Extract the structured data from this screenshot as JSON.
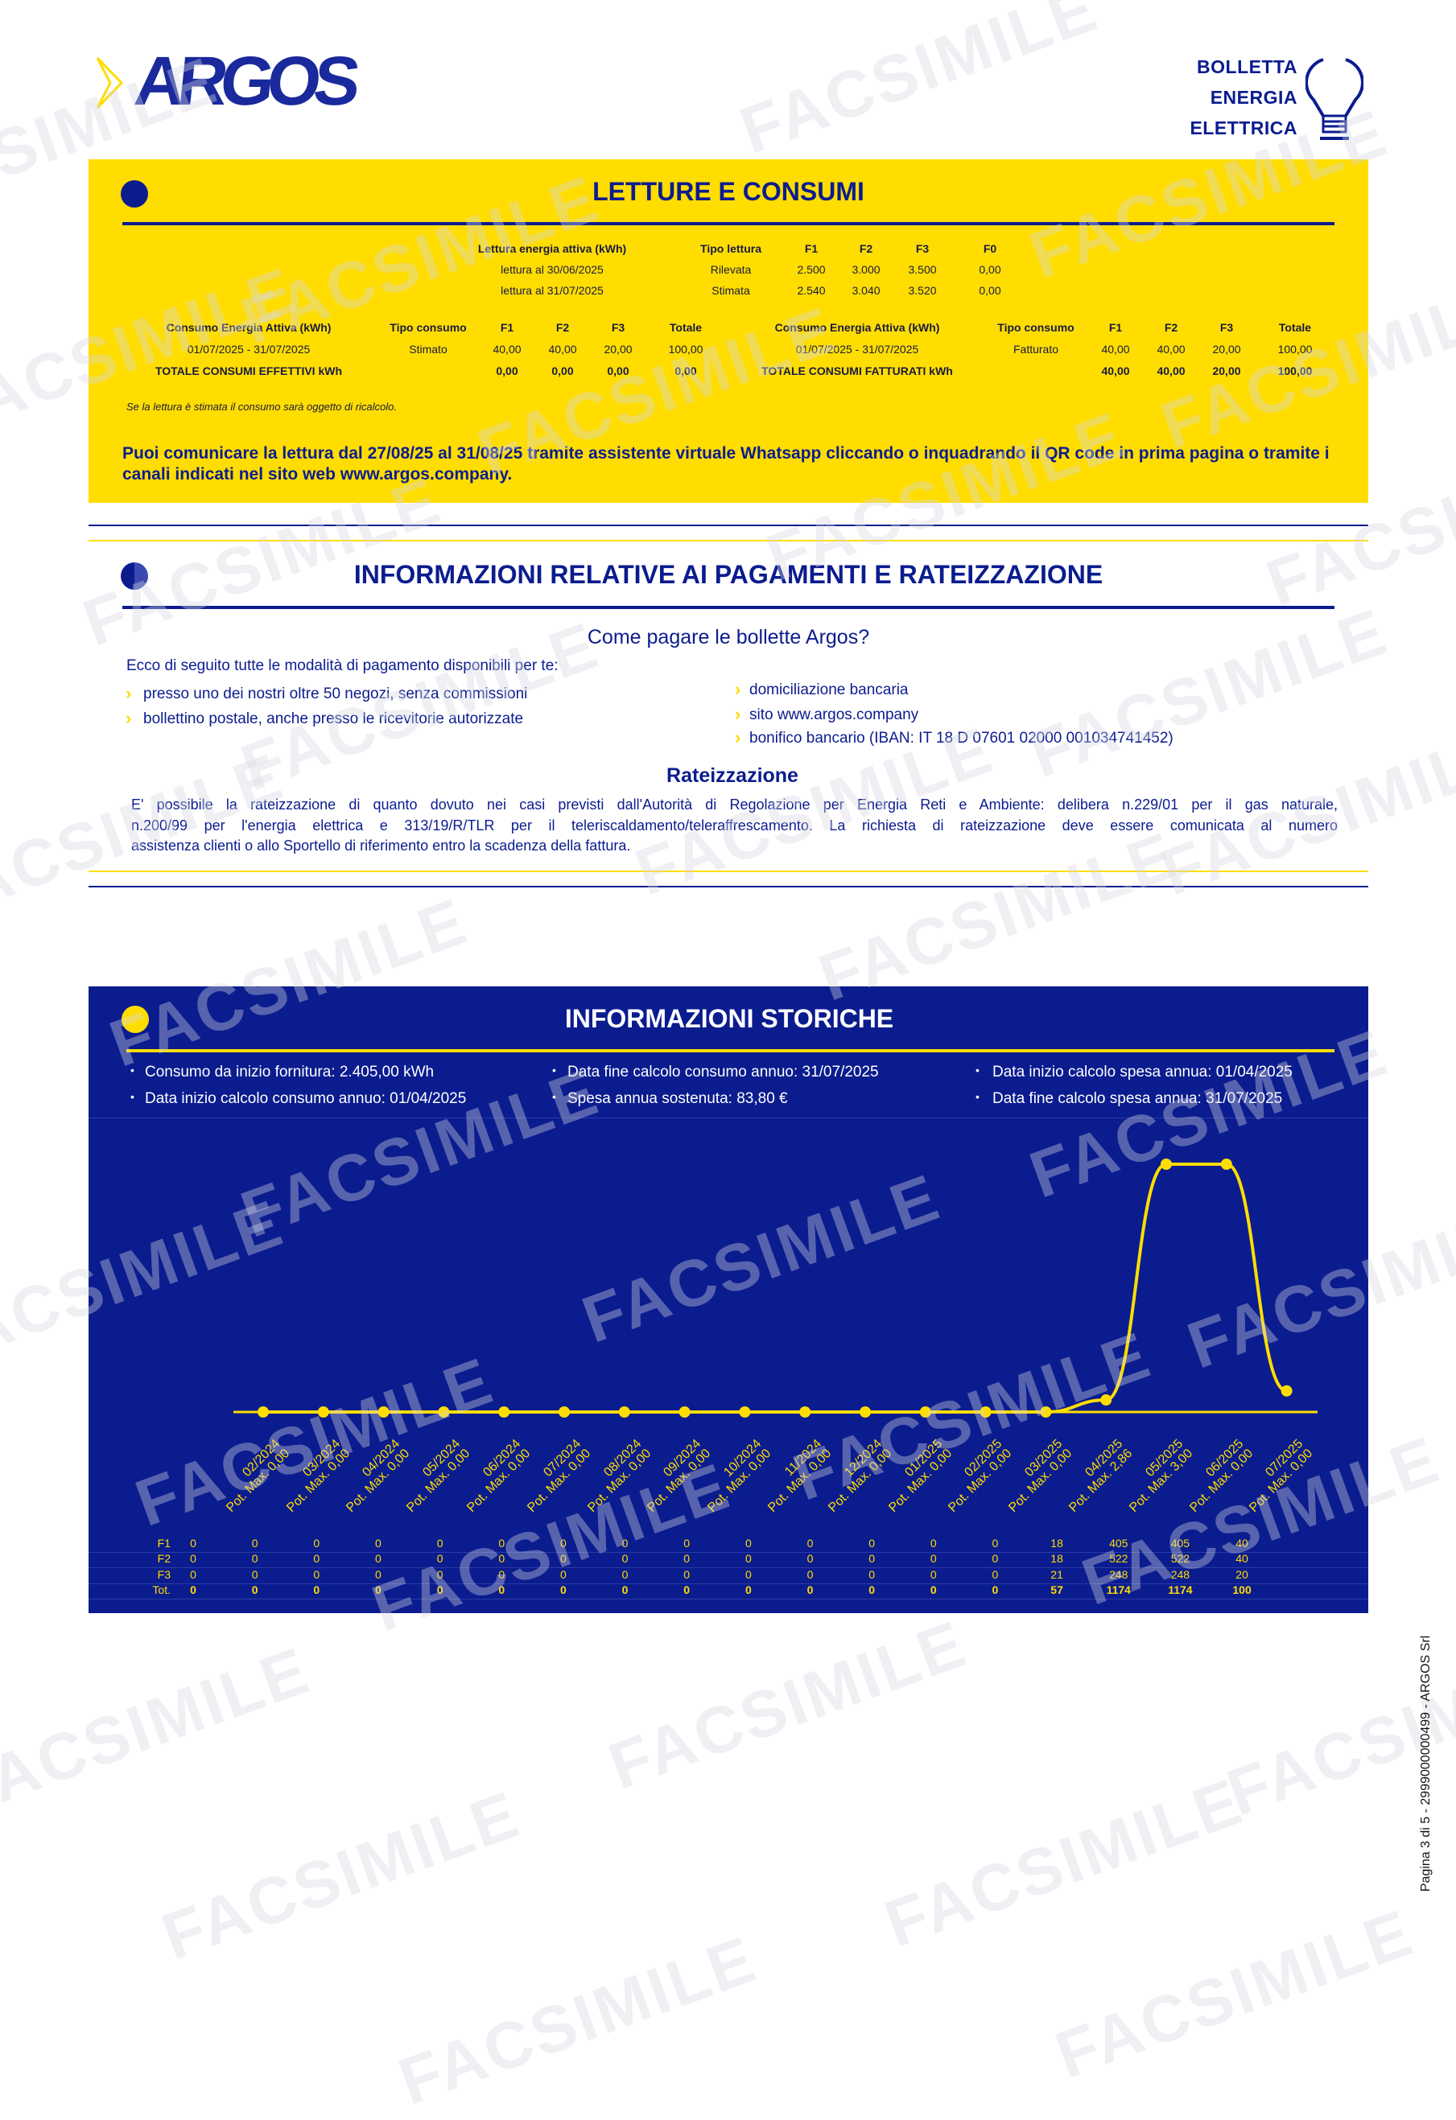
{
  "header": {
    "logo": "ARGOS",
    "doc_type": [
      "BOLLETTA",
      "ENERGIA",
      "ELETTRICA"
    ]
  },
  "letture": {
    "title": "LETTURE E CONSUMI",
    "readings": {
      "headers": [
        "Lettura energia attiva (kWh)",
        "Tipo lettura",
        "F1",
        "F2",
        "F3",
        "F0"
      ],
      "rows": [
        [
          "lettura al 30/06/2025",
          "Rilevata",
          "2.500",
          "3.000",
          "3.500",
          "0,00"
        ],
        [
          "lettura al 31/07/2025",
          "Stimata",
          "2.540",
          "3.040",
          "3.520",
          "0,00"
        ]
      ]
    },
    "consumi_effettivi": {
      "headers": [
        "Consumo Energia Attiva (kWh)",
        "Tipo consumo",
        "F1",
        "F2",
        "F3",
        "Totale"
      ],
      "row": [
        "01/07/2025 - 31/07/2025",
        "Stimato",
        "40,00",
        "40,00",
        "20,00",
        "100,00"
      ],
      "total": [
        "TOTALE CONSUMI EFFETTIVI kWh",
        "",
        "0,00",
        "0,00",
        "0,00",
        "0,00"
      ]
    },
    "consumi_fatturati": {
      "headers": [
        "Consumo Energia Attiva (kWh)",
        "Tipo consumo",
        "F1",
        "F2",
        "F3",
        "Totale"
      ],
      "row": [
        "01/07/2025 - 31/07/2025",
        "Fatturato",
        "40,00",
        "40,00",
        "20,00",
        "100,00"
      ],
      "total": [
        "TOTALE CONSUMI FATTURATI kWh",
        "",
        "40,00",
        "40,00",
        "20,00",
        "100,00"
      ]
    },
    "note": "Se la lettura è stimata il consumo sarà oggetto di ricalcolo.",
    "comunica": [
      "Puoi comunicare la lettura dal 27/08/25 al 31/08/25 tramite assistente virtuale Whatsapp cliccando o inquadrando il QR code in prima pagina o tramite i",
      "canali indicati nel sito web www.argos.company."
    ]
  },
  "pagamenti": {
    "title": "INFORMAZIONI RELATIVE AI PAGAMENTI E RATEIZZAZIONE",
    "subtitle": "Come pagare le bollette Argos?",
    "intro": "Ecco di seguito tutte le modalità di pagamento disponibili per te:",
    "left": [
      "presso uno dei nostri oltre 50 negozi, senza commissioni",
      "bollettino postale, anche presso le ricevitorie autorizzate"
    ],
    "right": [
      "domiciliazione bancaria",
      "sito www.argos.company",
      "bonifico bancario (IBAN: IT 18 D 07601 02000 001034741452)"
    ],
    "rate_title": "Rateizzazione",
    "rate_text": [
      "E' possibile la rateizzazione di quanto dovuto nei casi previsti dall'Autorità di Regolazione per Energia Reti e Ambiente: delibera n.229/01 per il gas naturale,",
      "n.200/99 per l'energia elettrica e 313/19/R/TLR per il teleriscaldamento/teleraffrescamento. La richiesta di rateizzazione deve essere comunicata al numero",
      "assistenza clienti o allo Sportello di riferimento entro la scadenza della fattura."
    ]
  },
  "storiche": {
    "title": "INFORMAZIONI STORICHE",
    "info": [
      [
        "Consumo da inizio fornitura: 2.405,00 kWh",
        "Data inizio calcolo consumo annuo: 01/04/2025"
      ],
      [
        "Data fine calcolo consumo annuo: 31/07/2025",
        "Spesa annua sostenuta: 83,80 €"
      ],
      [
        "Data inizio calcolo spesa annua: 01/04/2025",
        "Data fine calcolo spesa annua: 31/07/2025"
      ]
    ]
  },
  "chart_data": {
    "type": "line",
    "categories": [
      "02/2024",
      "03/2024",
      "04/2024",
      "05/2024",
      "06/2024",
      "07/2024",
      "08/2024",
      "09/2024",
      "10/2024",
      "11/2024",
      "12/2024",
      "01/2025",
      "02/2025",
      "03/2025",
      "04/2025",
      "05/2025",
      "06/2025",
      "07/2025"
    ],
    "pot_max": [
      "0,00",
      "0,00",
      "0,00",
      "0,00",
      "0,00",
      "0,00",
      "0,00",
      "0,00",
      "0,00",
      "0,00",
      "0,00",
      "0,00",
      "0,00",
      "0,00",
      "2,86",
      "3,00",
      "0,00",
      "0,00"
    ],
    "pot_prefix": "Pot. Max.",
    "series": [
      {
        "name": "F1",
        "values": [
          0,
          0,
          0,
          0,
          0,
          0,
          0,
          0,
          0,
          0,
          0,
          0,
          0,
          0,
          18,
          405,
          405,
          40
        ]
      },
      {
        "name": "F2",
        "values": [
          0,
          0,
          0,
          0,
          0,
          0,
          0,
          0,
          0,
          0,
          0,
          0,
          0,
          0,
          18,
          522,
          522,
          40
        ]
      },
      {
        "name": "F3",
        "values": [
          0,
          0,
          0,
          0,
          0,
          0,
          0,
          0,
          0,
          0,
          0,
          0,
          0,
          0,
          21,
          248,
          248,
          20
        ]
      },
      {
        "name": "Tot.",
        "values": [
          0,
          0,
          0,
          0,
          0,
          0,
          0,
          0,
          0,
          0,
          0,
          0,
          0,
          0,
          57,
          1174,
          1174,
          100
        ]
      }
    ],
    "plotted_series": "Tot.",
    "line_color": "#ffdd00",
    "background": "#0b1c8f",
    "grid": false
  },
  "footer": {
    "side_text": "Pagina 3 di 5 - 2999000000499 - ARGOS Srl"
  },
  "watermark": "FACSIMILE",
  "colors": {
    "navy": "#0b1c8f",
    "yellow": "#ffdd00"
  }
}
